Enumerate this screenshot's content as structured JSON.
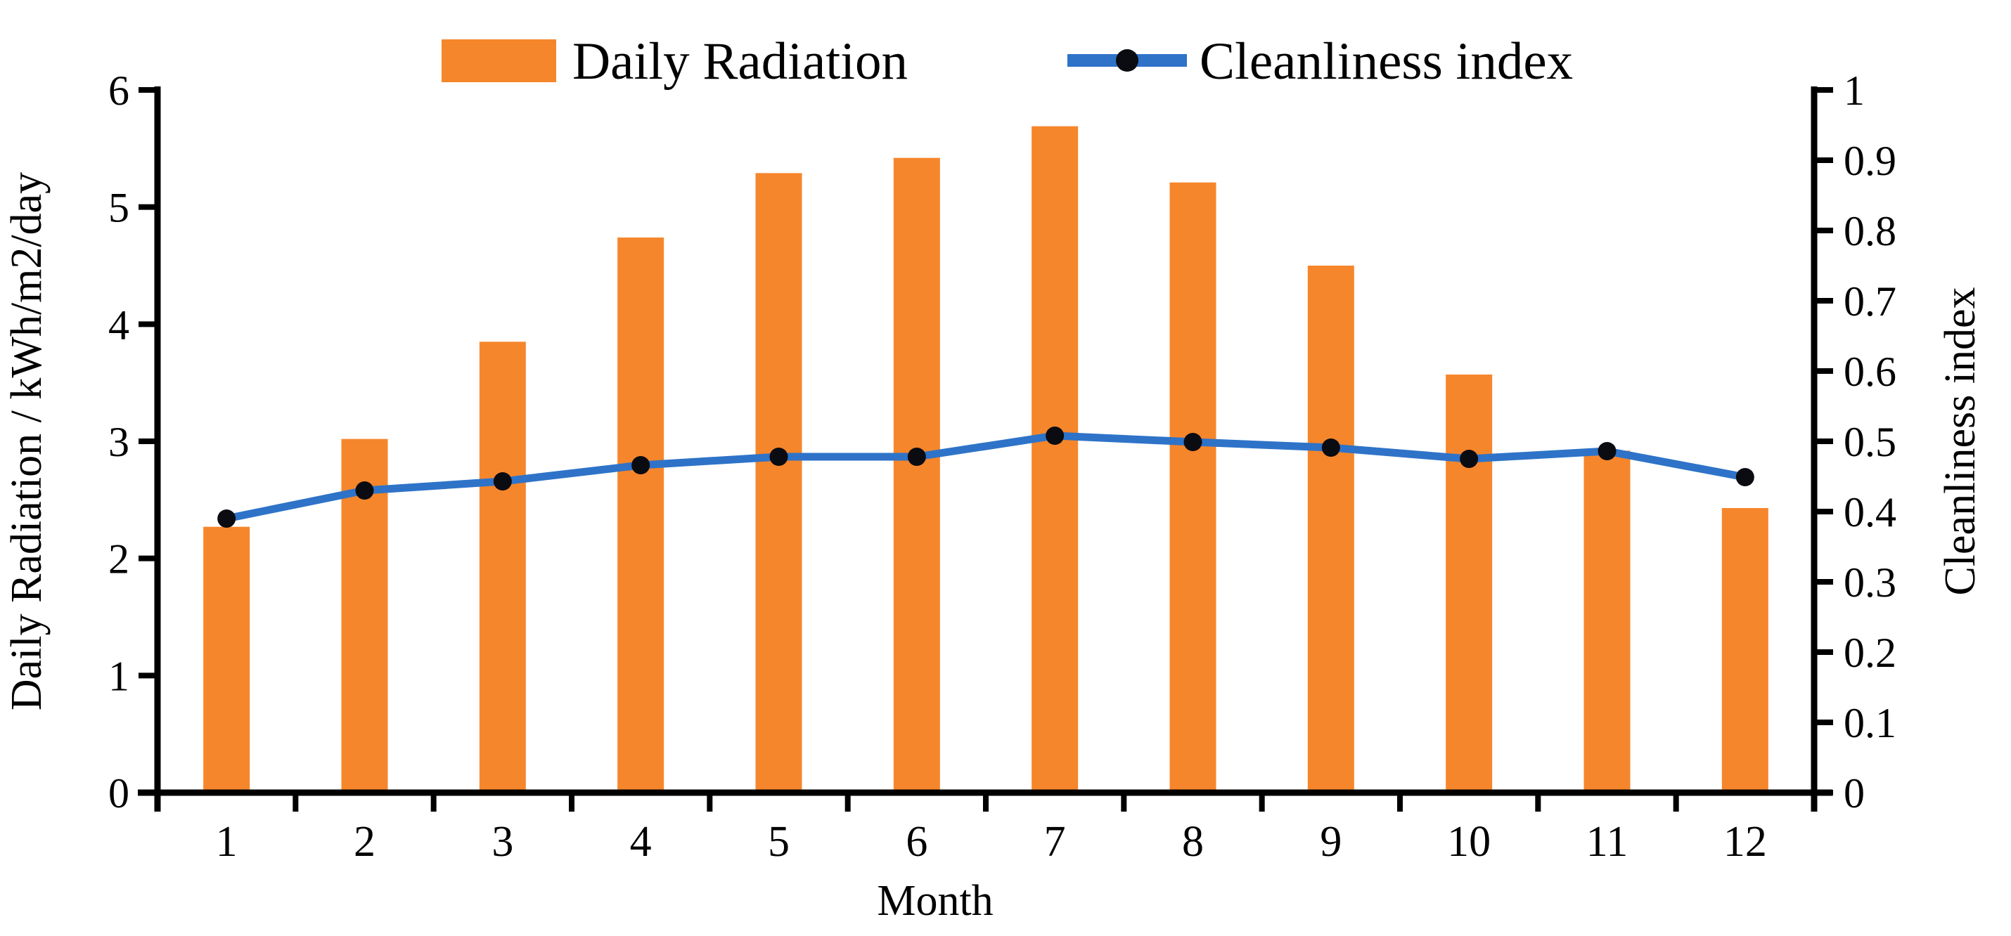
{
  "chart_data": {
    "type": "bar",
    "subtype": "combo-bar-line-dual-axis",
    "title": "",
    "xlabel": "Month",
    "categories": [
      "1",
      "2",
      "3",
      "4",
      "5",
      "6",
      "7",
      "8",
      "9",
      "10",
      "11",
      "12"
    ],
    "series": [
      {
        "name": "Daily Radiation",
        "type": "bar",
        "axis": "left",
        "color": "#F6862B",
        "values": [
          2.27,
          3.02,
          3.85,
          4.74,
          5.29,
          5.42,
          5.69,
          5.21,
          4.5,
          3.57,
          2.92,
          2.43
        ]
      },
      {
        "name": "Cleanliness index",
        "type": "line",
        "axis": "right",
        "color": "#2E73C8",
        "marker_color": "#0B0B12",
        "values": [
          0.39,
          0.43,
          0.443,
          0.466,
          0.478,
          0.478,
          0.508,
          0.499,
          0.491,
          0.475,
          0.486,
          0.449
        ]
      }
    ],
    "left_axis": {
      "title": "Daily Radiation / kWh/m2/day",
      "min": 0,
      "max": 6,
      "step": 1,
      "tick_labels": [
        "0",
        "1",
        "2",
        "3",
        "4",
        "5",
        "6"
      ]
    },
    "right_axis": {
      "title": "Cleanliness  index",
      "min": 0,
      "max": 1,
      "step": 0.1,
      "tick_labels": [
        "0",
        "0.1",
        "0.2",
        "0.3",
        "0.4",
        "0.5",
        "0.6",
        "0.7",
        "0.8",
        "0.9",
        "1"
      ]
    },
    "legend": {
      "position": "top",
      "items": [
        "Daily Radiation",
        "Cleanliness index"
      ]
    },
    "grid": false,
    "axis_color": "#000000"
  }
}
